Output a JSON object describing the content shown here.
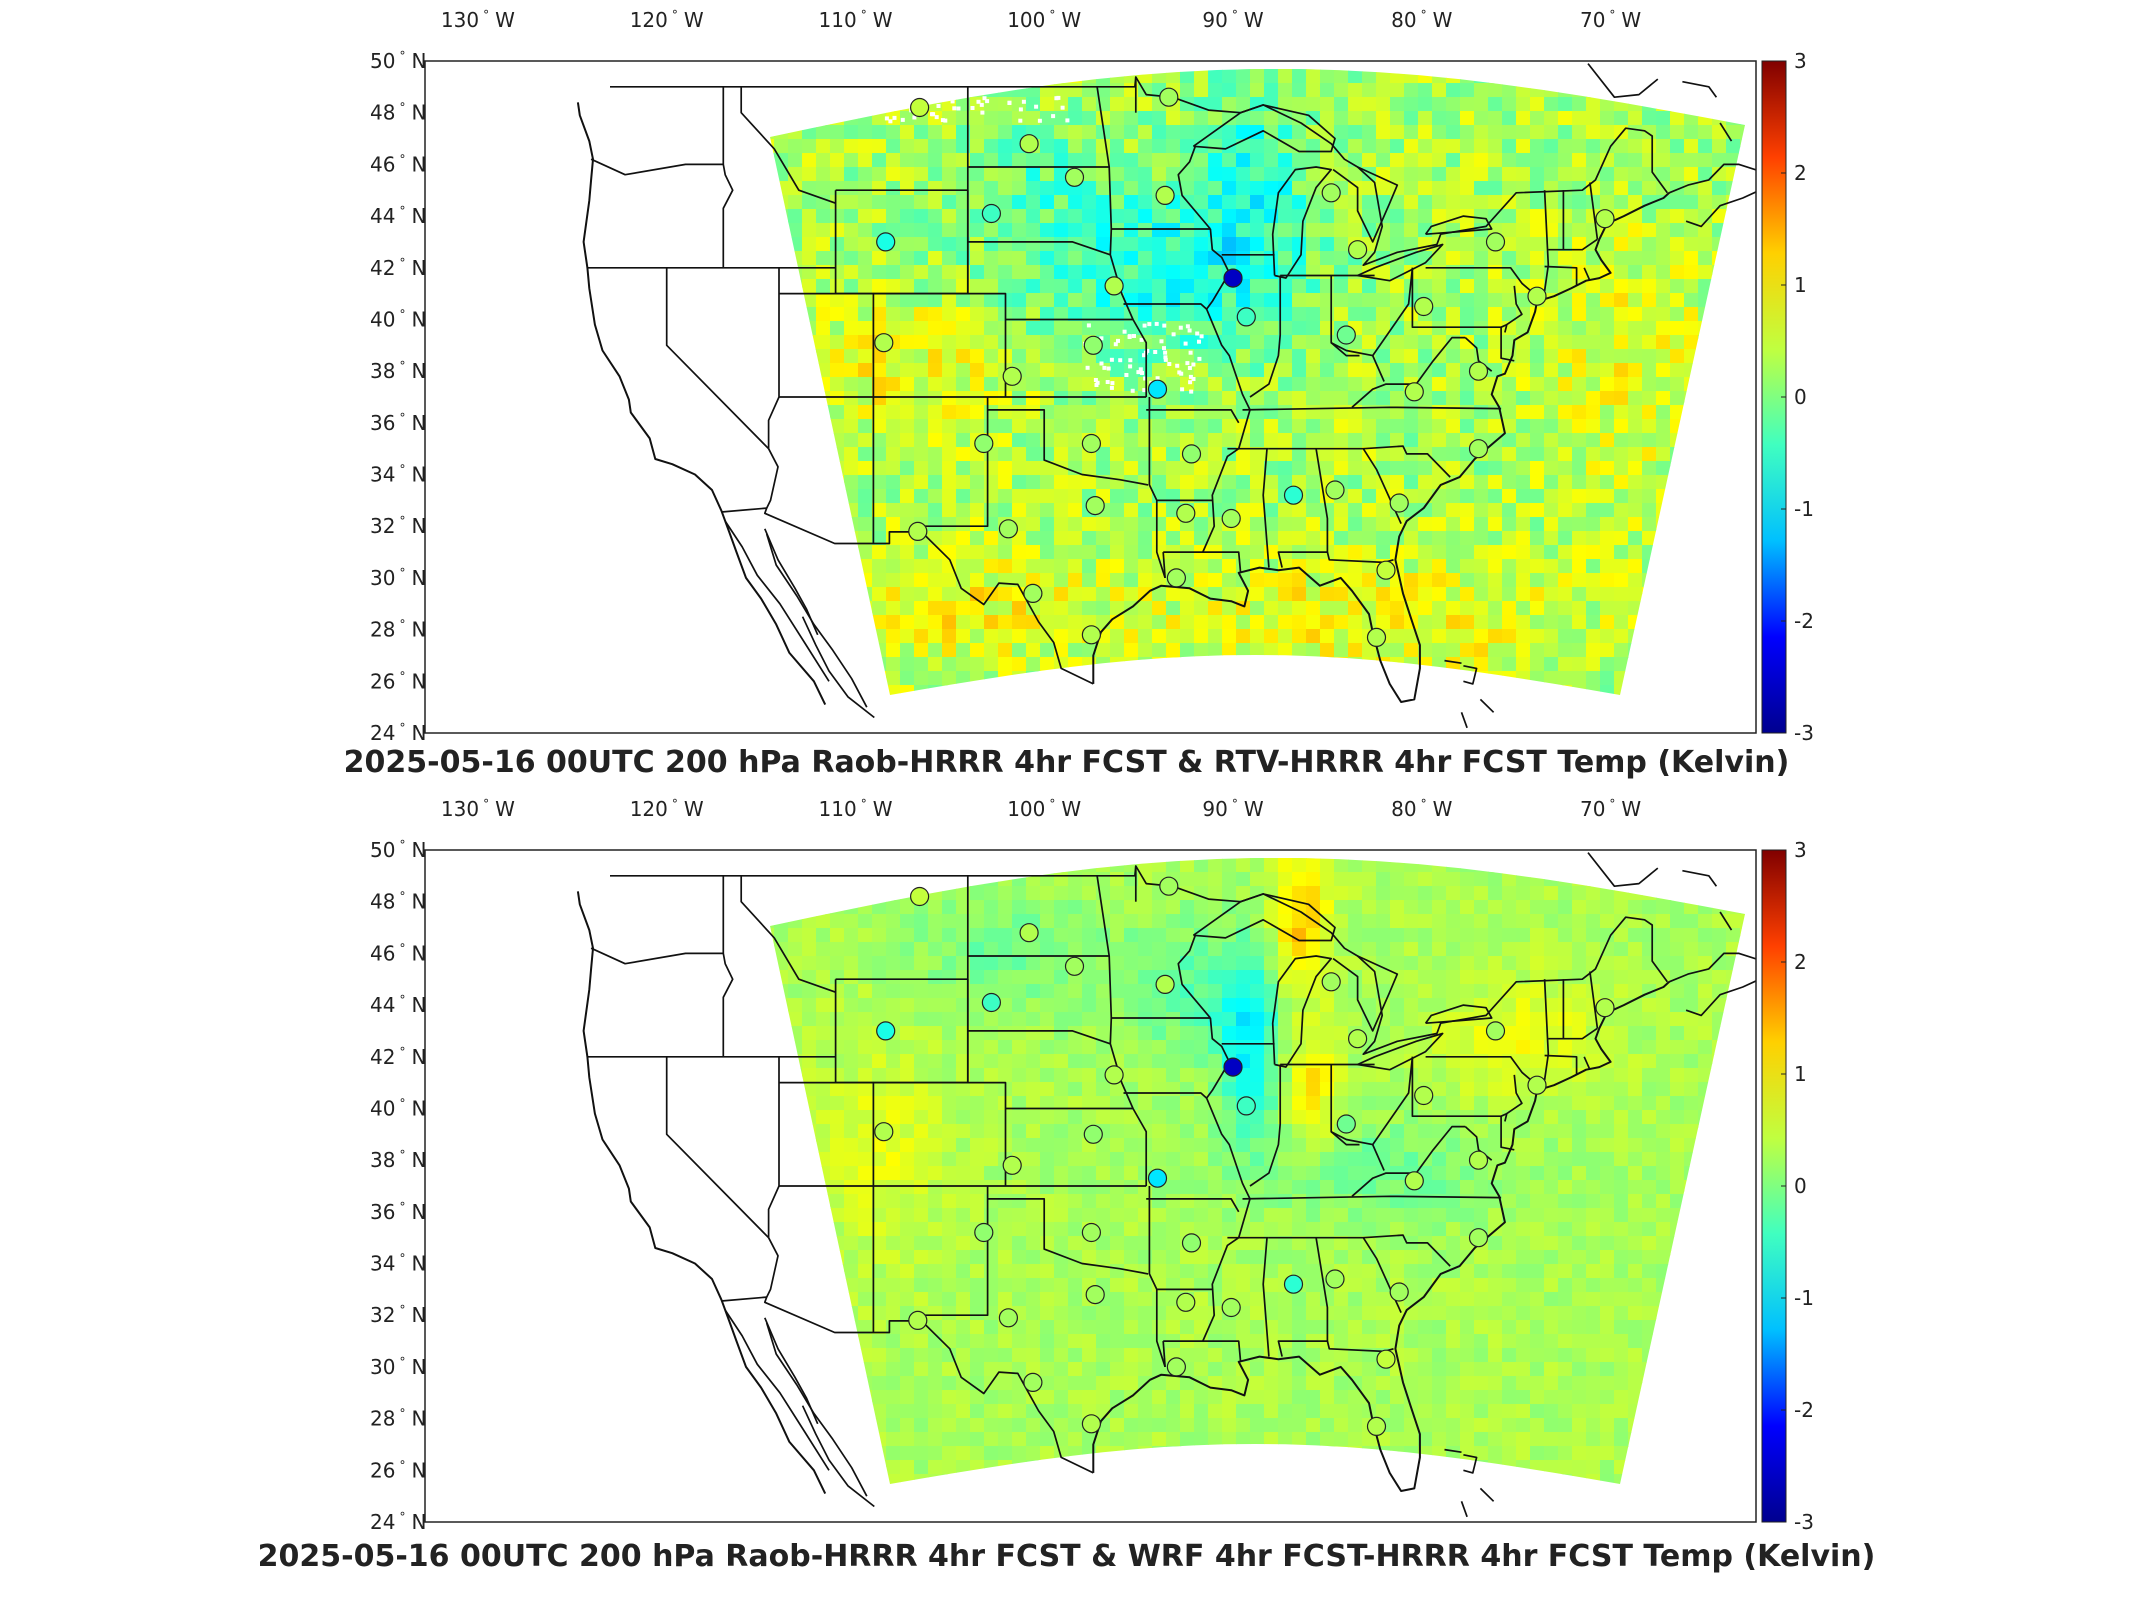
{
  "colorbar": {
    "min": -3,
    "max": 3,
    "ticks": [
      "3",
      "2",
      "1",
      "0",
      "-1",
      "-2",
      "-3"
    ],
    "colors": [
      "#00008f",
      "#0000ff",
      "#00c0ff",
      "#40ffc0",
      "#c0ff40",
      "#ffd000",
      "#ff4000",
      "#800000"
    ]
  },
  "axes": {
    "lon_ticks": [
      "130",
      "120",
      "110",
      "100",
      "90",
      "80",
      "70"
    ],
    "lon_hemisphere": "W",
    "lat_ticks": [
      "50",
      "48",
      "46",
      "44",
      "42",
      "40",
      "38",
      "36",
      "34",
      "32",
      "30",
      "28",
      "26",
      "24"
    ],
    "lat_hemisphere": "N",
    "degree_symbol": "°"
  },
  "panels": [
    {
      "title": "2025-05-16 00UTC 200 hPa Raob-HRRR 4hr FCST & RTV-HRRR 4hr FCST Temp (Kelvin)",
      "field_style": "noisy"
    },
    {
      "title": "2025-05-16 00UTC 200 hPa Raob-HRRR 4hr FCST & WRF 4hr FCST-HRRR 4hr FCST Temp (Kelvin)",
      "field_style": "smooth"
    }
  ],
  "stations": [
    {
      "lon": -106.6,
      "lat": 48.2,
      "v": 0.4
    },
    {
      "lon": -100.8,
      "lat": 46.8,
      "v": 0.3
    },
    {
      "lon": -98.4,
      "lat": 45.5,
      "v": 0.2
    },
    {
      "lon": -93.6,
      "lat": 44.8,
      "v": 0.3
    },
    {
      "lon": -93.4,
      "lat": 48.6,
      "v": 0.2
    },
    {
      "lon": -102.8,
      "lat": 44.1,
      "v": -0.4
    },
    {
      "lon": -108.4,
      "lat": 43.0,
      "v": -0.6
    },
    {
      "lon": -90.0,
      "lat": 41.6,
      "v": -2.6
    },
    {
      "lon": -89.3,
      "lat": 40.1,
      "v": -0.4
    },
    {
      "lon": -96.3,
      "lat": 41.3,
      "v": 0.3
    },
    {
      "lon": -84.8,
      "lat": 44.9,
      "v": 0.2
    },
    {
      "lon": -83.4,
      "lat": 42.7,
      "v": 0.3
    },
    {
      "lon": -79.9,
      "lat": 40.5,
      "v": 0.3
    },
    {
      "lon": -76.1,
      "lat": 43.0,
      "v": 0.2
    },
    {
      "lon": -73.9,
      "lat": 40.9,
      "v": 0.3
    },
    {
      "lon": -70.3,
      "lat": 43.9,
      "v": 0.3
    },
    {
      "lon": -84.0,
      "lat": 39.4,
      "v": -0.1
    },
    {
      "lon": -80.4,
      "lat": 37.2,
      "v": 0.3
    },
    {
      "lon": -77.0,
      "lat": 38.0,
      "v": 0.3
    },
    {
      "lon": -97.4,
      "lat": 39.0,
      "v": 0.1
    },
    {
      "lon": -101.7,
      "lat": 37.8,
      "v": 0.3
    },
    {
      "lon": -108.5,
      "lat": 39.1,
      "v": 0.3
    },
    {
      "lon": -94.0,
      "lat": 37.3,
      "v": -0.9
    },
    {
      "lon": -92.2,
      "lat": 34.8,
      "v": 0.1
    },
    {
      "lon": -97.5,
      "lat": 35.2,
      "v": 0.2
    },
    {
      "lon": -103.2,
      "lat": 35.2,
      "v": 0.1
    },
    {
      "lon": -97.3,
      "lat": 32.8,
      "v": 0.2
    },
    {
      "lon": -101.9,
      "lat": 31.9,
      "v": 0.2
    },
    {
      "lon": -106.7,
      "lat": 31.8,
      "v": 0.3
    },
    {
      "lon": -92.5,
      "lat": 32.5,
      "v": 0.3
    },
    {
      "lon": -90.1,
      "lat": 32.3,
      "v": 0.2
    },
    {
      "lon": -86.8,
      "lat": 33.2,
      "v": -0.5
    },
    {
      "lon": -84.6,
      "lat": 33.4,
      "v": 0.2
    },
    {
      "lon": -81.2,
      "lat": 32.9,
      "v": 0.2
    },
    {
      "lon": -77.0,
      "lat": 35.0,
      "v": 0.2
    },
    {
      "lon": -93.0,
      "lat": 30.0,
      "v": 0.2
    },
    {
      "lon": -100.6,
      "lat": 29.4,
      "v": 0.2
    },
    {
      "lon": -97.5,
      "lat": 27.8,
      "v": 0.3
    },
    {
      "lon": -82.4,
      "lat": 27.7,
      "v": 0.3
    },
    {
      "lon": -81.9,
      "lat": 30.3,
      "v": 0.4
    }
  ]
}
